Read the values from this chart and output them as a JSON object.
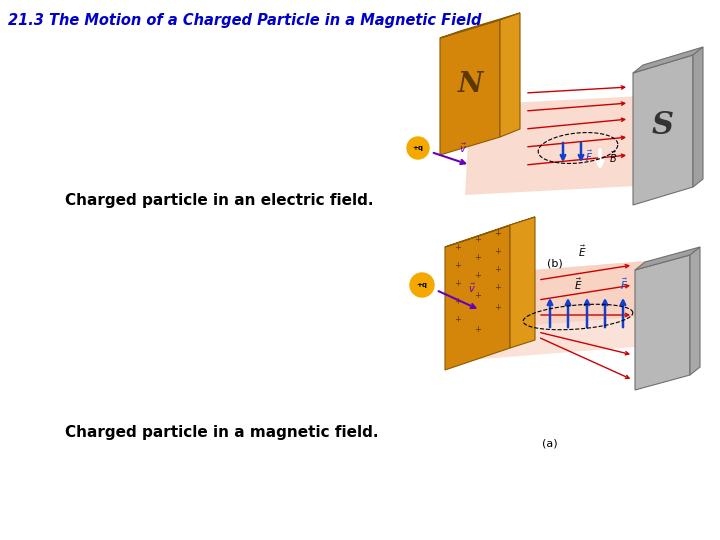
{
  "title": "21.3 The Motion of a Charged Particle in a Magnetic Field",
  "title_color": "#0000CC",
  "title_fontsize": 10.5,
  "label1": "Charged particle in an electric field.",
  "label2": "Charged particle in a magnetic field.",
  "label_fontsize": 11,
  "bg_color": "#ffffff",
  "fig_width": 7.2,
  "fig_height": 5.4,
  "caption_a": "(a)",
  "caption_b": "(b)",
  "caption_fontsize": 8,
  "orange_dark": "#D4860A",
  "orange_mid": "#E09818",
  "orange_light": "#F0B030",
  "gray_plate": "#B8B8B8",
  "gray_dark": "#909090",
  "gray_top": "#A0A0A0",
  "pink_field": "#F8D0C0",
  "red_arrow": "#CC0000",
  "blue_arrow": "#1040CC",
  "purple_arrow": "#6600BB",
  "white_arrow": "#FFFFFF",
  "sphere_color": "#F5A800"
}
